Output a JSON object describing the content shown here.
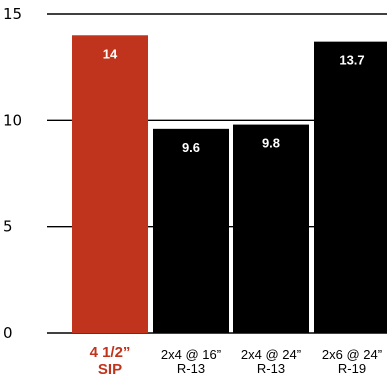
{
  "chart_data": {
    "type": "bar",
    "categories": [
      [
        "4 1/2”",
        "SIP"
      ],
      [
        "2x4 @ 16”",
        "R-13"
      ],
      [
        "2x4 @ 24”",
        "R-13"
      ],
      [
        "2x6 @ 24”",
        "R-19"
      ]
    ],
    "values": [
      14,
      9.6,
      9.8,
      13.7
    ],
    "value_labels": [
      "14",
      "9.6",
      "9.8",
      "13.7"
    ],
    "highlight_index": 0,
    "colors": {
      "highlight": "#c0341d",
      "default": "#000000",
      "value_text": "#ffffff"
    },
    "ylim": [
      0,
      15
    ],
    "yticks": [
      0,
      5,
      10,
      15
    ],
    "grid": "horizontal"
  }
}
